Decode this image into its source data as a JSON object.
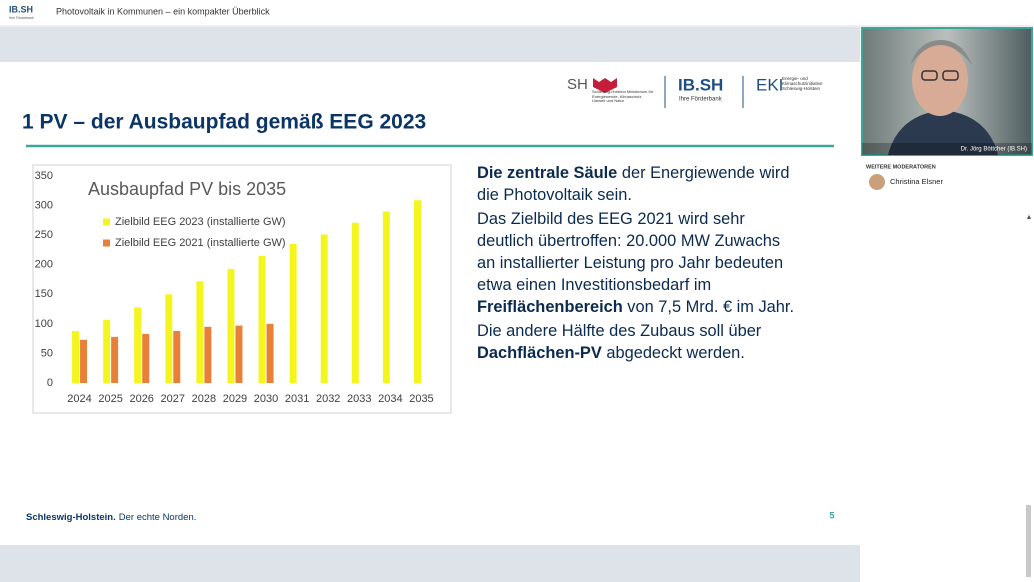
{
  "topbar": {
    "logo": "IB.SH",
    "logo_sub": "Ihre Förderbank",
    "title": "Photovoltaik in Kommunen – ein kompakter Überblick"
  },
  "slide": {
    "heading": "1 PV – der Ausbaupfad gemäß EEG 2023",
    "logos": {
      "sh": "SH",
      "sh_sub": "Schleswig-Holstein Ministerium für Energiewende, Klimaschutz, Umwelt und Natur",
      "ibsh": "IB.SH",
      "ibsh_sub": "Ihre Förderbank",
      "eki": "EKI",
      "eki_sub": "Energie- und Klimaschutzinitiative Schleswig-Holstein"
    },
    "paragraphs": [
      [
        {
          "text": "Die zentrale Säule",
          "bold": true
        },
        {
          "text": " der Energiewende wird die Photovoltaik sein."
        }
      ],
      [
        {
          "text": "Das Zielbild des EEG 2021 wird sehr deutlich übertroffen:  20.000 MW Zuwachs an installierter Leistung pro Jahr bedeuten etwa einen Investitionsbedarf im "
        },
        {
          "text": "Freiflächenbereich",
          "bold": true
        },
        {
          "text": " von 7,5 Mrd. € im Jahr."
        }
      ],
      [
        {
          "text": "Die andere Hälfte des Zubaus soll über "
        },
        {
          "text": "Dachflächen-PV",
          "bold": true
        },
        {
          "text": " abgedeckt werden."
        }
      ]
    ],
    "footer": {
      "bold": "Schleswig-Holstein.",
      "rest": "Der echte Norden."
    },
    "page_number": 5
  },
  "chart_data": {
    "type": "bar",
    "title": "Ausbaupfad PV bis 2035",
    "categories": [
      "2024",
      "2025",
      "2026",
      "2027",
      "2028",
      "2029",
      "2030",
      "2031",
      "2032",
      "2033",
      "2034",
      "2035"
    ],
    "series": [
      {
        "name": "Zielbild EEG 2023 (installierte GW)",
        "color": "#f5f51e",
        "values": [
          88,
          107,
          128,
          150,
          172,
          193,
          215,
          235,
          251,
          271,
          290,
          309
        ]
      },
      {
        "name": "Zielbild EEG 2021 (installierte GW)",
        "color": "#e8803a",
        "values": [
          73,
          78,
          83,
          88,
          95,
          97,
          100,
          null,
          null,
          null,
          null,
          null
        ]
      }
    ],
    "ylim": [
      0,
      350
    ],
    "yticks": [
      0,
      50,
      100,
      150,
      200,
      250,
      300,
      350
    ],
    "grid": false
  },
  "sidebar": {
    "speaker": "Dr. Jörg Böttcher (IB.SH)",
    "section": "WEITERE MODERATOREN",
    "moderators": [
      "Christina Elsner"
    ]
  }
}
